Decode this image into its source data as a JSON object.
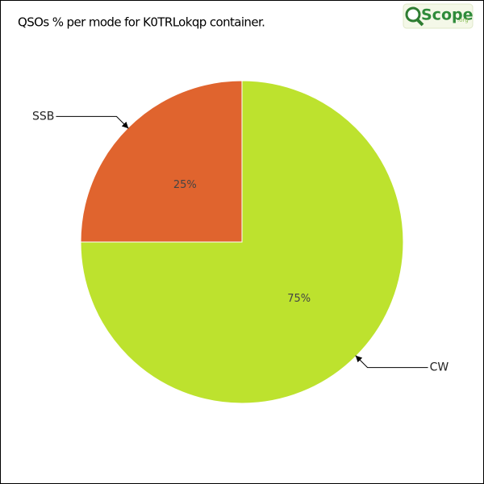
{
  "chart_data": {
    "type": "pie",
    "title": "QSOs % per mode for K0TRLokqp container.",
    "categories": [
      "CW",
      "SSB"
    ],
    "values": [
      75,
      25
    ],
    "value_labels": [
      "75%",
      "25%"
    ],
    "colors": [
      "#bde22e",
      "#e0642e"
    ]
  },
  "logo": {
    "name": "Scope",
    "suffix": ".org"
  }
}
